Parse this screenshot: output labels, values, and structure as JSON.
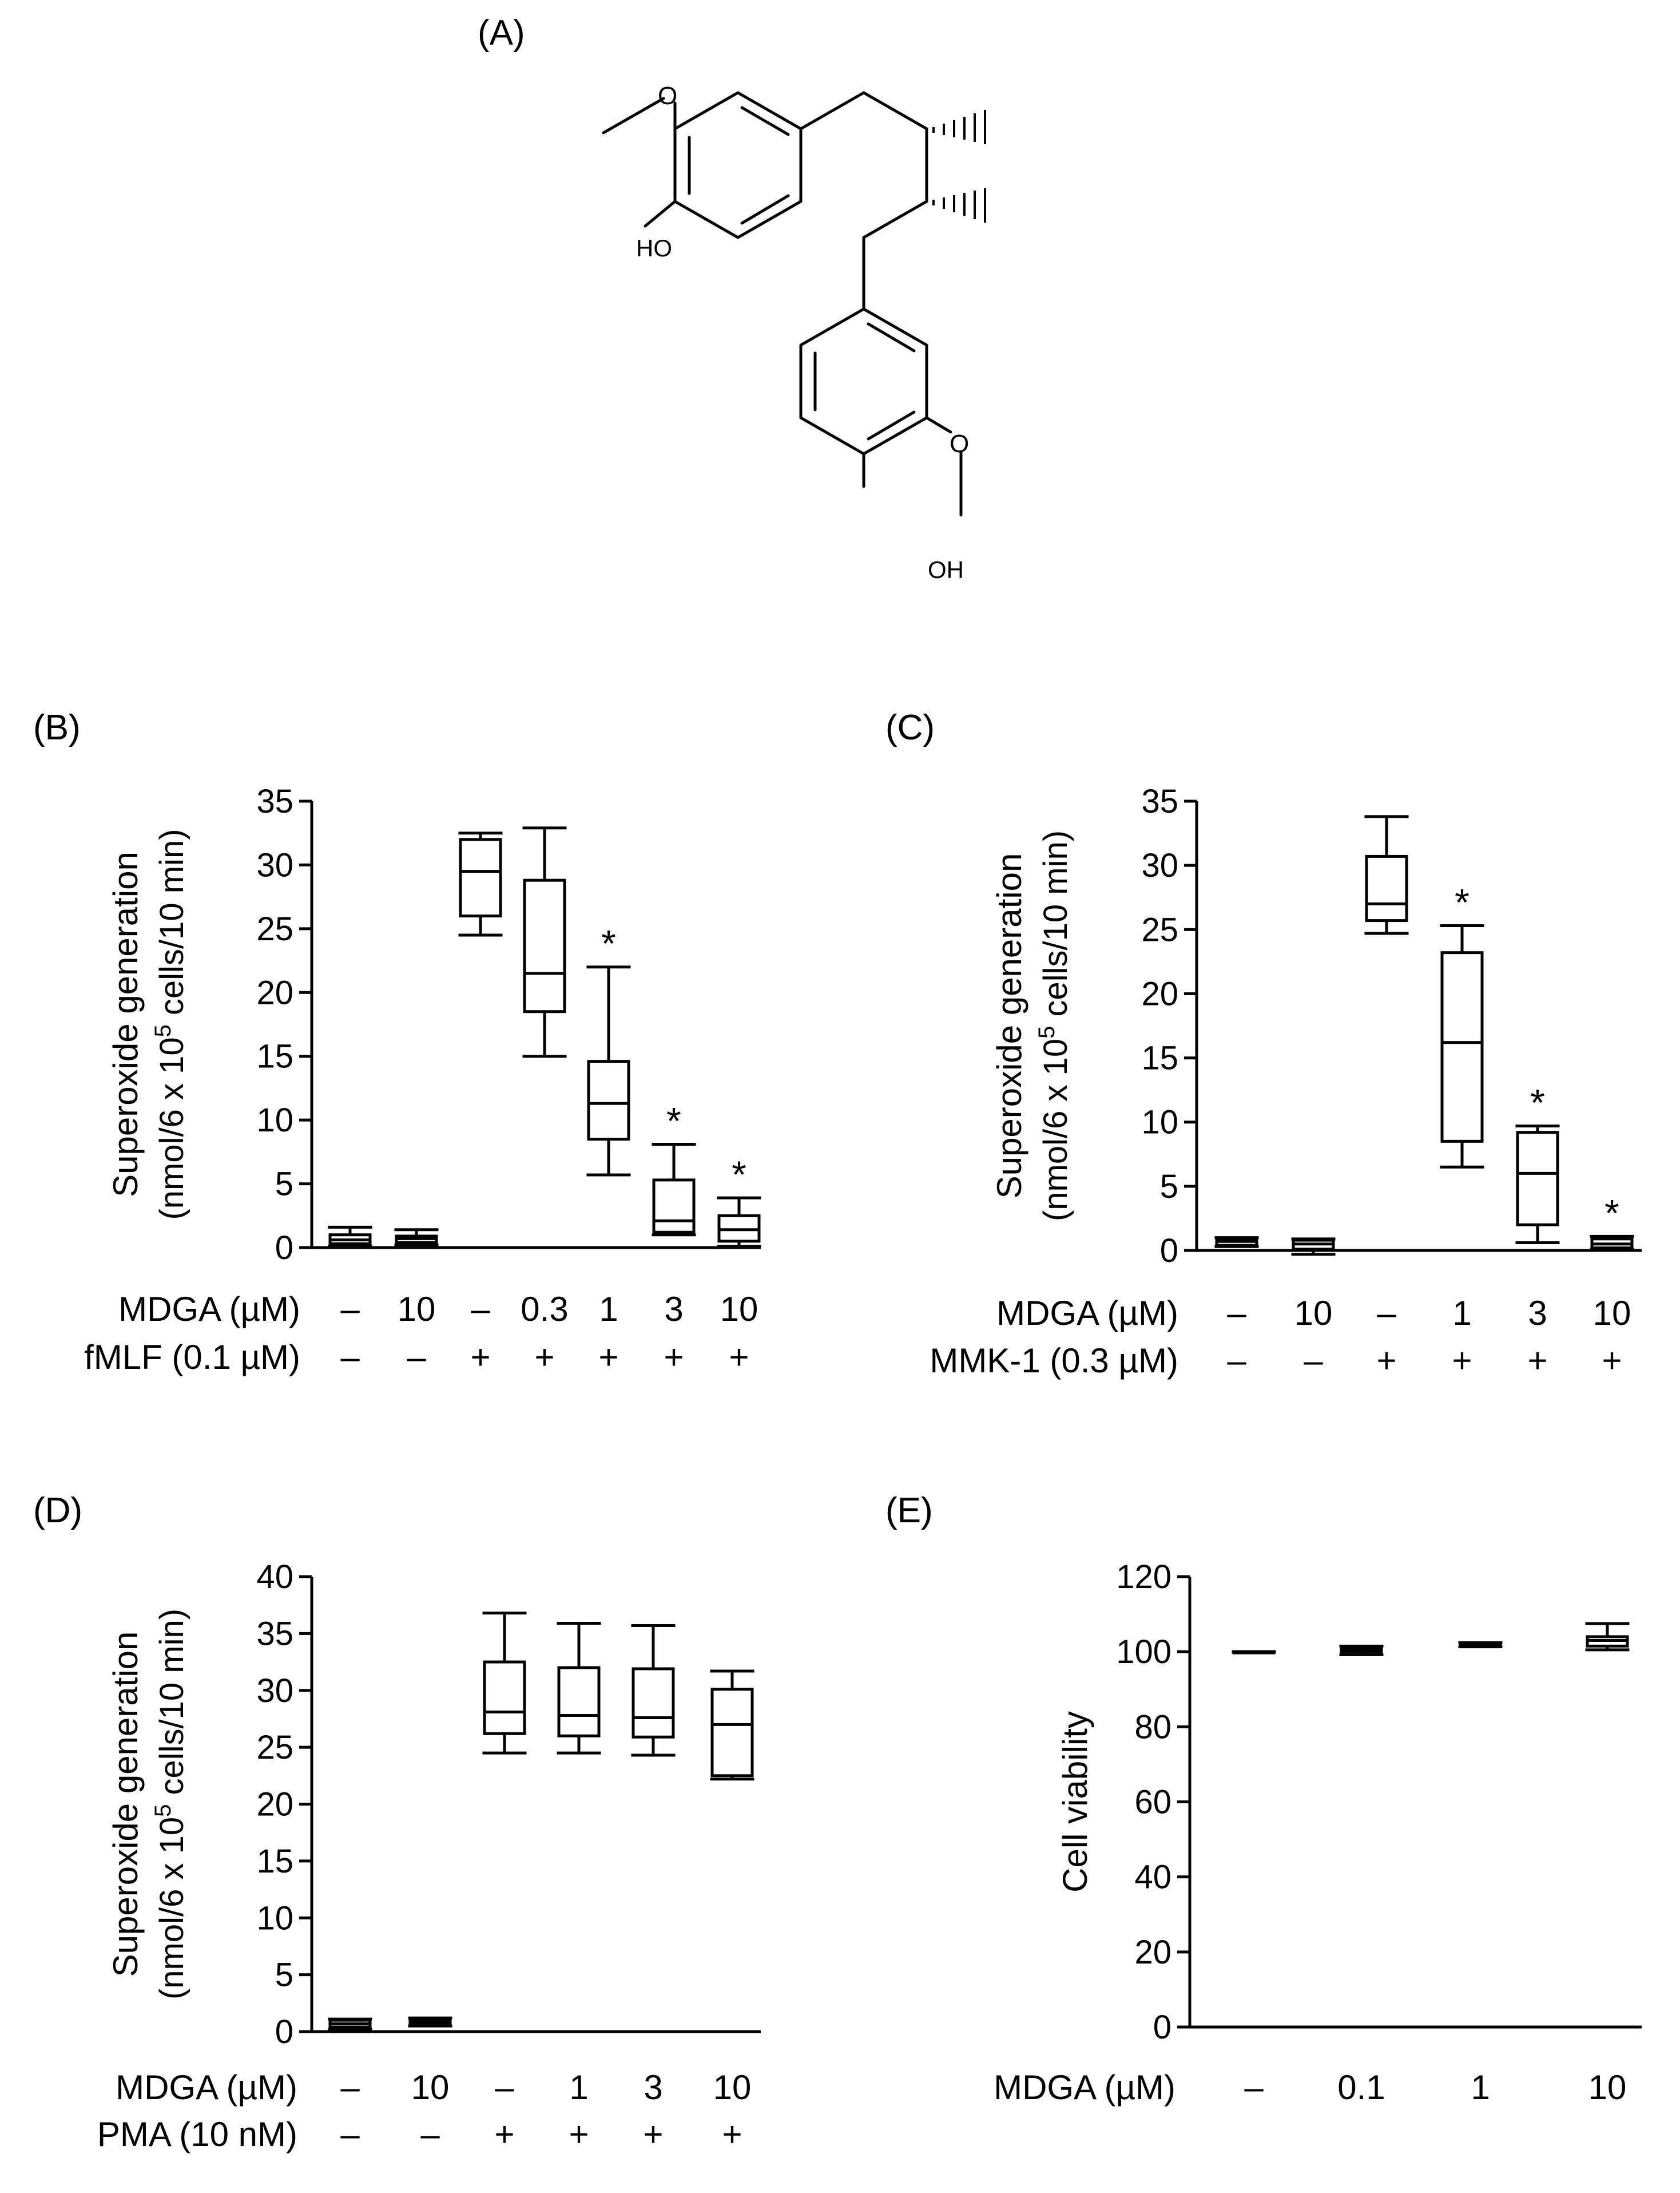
{
  "panel_labels": {
    "A": "(A)",
    "B": "(B)",
    "C": "(C)",
    "D": "(D)",
    "E": "(E)"
  },
  "structure": {
    "atom_labels": [
      "HO",
      "OH"
    ]
  },
  "y_label_superoxide_line1": "Superoxide  generation",
  "y_label_superoxide_line2_prefix": "(nmol/6 x 10",
  "y_label_superoxide_line2_sup": "5",
  "y_label_superoxide_line2_suffix": " cells/10 min)",
  "y_label_viability": "Cell viability",
  "chart_data": [
    {
      "panel": "B",
      "type": "box",
      "ylim": [
        0,
        35
      ],
      "yticks": [
        "0",
        "5",
        "10",
        "15",
        "20",
        "25",
        "30",
        "35"
      ],
      "row_labels": [
        "MDGA (µM)",
        "fMLF (0.1 µM)"
      ],
      "groups": [
        {
          "MDGA": "–",
          "stim": "–",
          "min": 0.1,
          "q1": 0.3,
          "median": 0.6,
          "q3": 1.0,
          "max": 1.6,
          "sig": ""
        },
        {
          "MDGA": "10",
          "stim": "–",
          "min": 0.2,
          "q1": 0.4,
          "median": 0.7,
          "q3": 0.9,
          "max": 1.4,
          "sig": ""
        },
        {
          "MDGA": "–",
          "stim": "+",
          "min": 24.5,
          "q1": 26.0,
          "median": 29.5,
          "q3": 32.0,
          "max": 32.5,
          "sig": ""
        },
        {
          "MDGA": "0.3",
          "stim": "+",
          "min": 15.0,
          "q1": 18.5,
          "median": 21.5,
          "q3": 28.8,
          "max": 32.9,
          "sig": ""
        },
        {
          "MDGA": "1",
          "stim": "+",
          "min": 5.7,
          "q1": 8.5,
          "median": 11.3,
          "q3": 14.6,
          "max": 22.0,
          "sig": "*"
        },
        {
          "MDGA": "3",
          "stim": "+",
          "min": 1.0,
          "q1": 1.2,
          "median": 2.1,
          "q3": 5.3,
          "max": 8.1,
          "sig": "*"
        },
        {
          "MDGA": "10",
          "stim": "+",
          "min": 0.1,
          "q1": 0.5,
          "median": 1.4,
          "q3": 2.5,
          "max": 3.9,
          "sig": "*"
        }
      ]
    },
    {
      "panel": "C",
      "type": "box",
      "ylim": [
        0,
        35
      ],
      "yticks": [
        "0",
        "5",
        "10",
        "15",
        "20",
        "25",
        "30",
        "35"
      ],
      "row_labels": [
        "MDGA (µM)",
        "MMK-1 (0.3 µM)"
      ],
      "groups": [
        {
          "MDGA": "–",
          "stim": "–",
          "min": 0.3,
          "q1": 0.4,
          "median": 0.7,
          "q3": 0.9,
          "max": 1.0,
          "sig": ""
        },
        {
          "MDGA": "10",
          "stim": "–",
          "min": -0.3,
          "q1": 0.1,
          "median": 0.5,
          "q3": 0.8,
          "max": 0.9,
          "sig": ""
        },
        {
          "MDGA": "–",
          "stim": "+",
          "min": 24.7,
          "q1": 25.7,
          "median": 27.0,
          "q3": 30.7,
          "max": 33.8,
          "sig": ""
        },
        {
          "MDGA": "1",
          "stim": "+",
          "min": 6.5,
          "q1": 8.5,
          "median": 16.2,
          "q3": 23.2,
          "max": 25.3,
          "sig": "*"
        },
        {
          "MDGA": "3",
          "stim": "+",
          "min": 0.6,
          "q1": 2.0,
          "median": 6.0,
          "q3": 9.2,
          "max": 9.7,
          "sig": "*"
        },
        {
          "MDGA": "10",
          "stim": "+",
          "min": 0.1,
          "q1": 0.2,
          "median": 0.5,
          "q3": 0.9,
          "max": 1.1,
          "sig": "*"
        }
      ]
    },
    {
      "panel": "D",
      "type": "box",
      "ylim": [
        0,
        40
      ],
      "yticks": [
        "0",
        "5",
        "10",
        "15",
        "20",
        "25",
        "30",
        "35",
        "40"
      ],
      "row_labels": [
        "MDGA (µM)",
        "PMA (10 nM)"
      ],
      "groups": [
        {
          "MDGA": "–",
          "stim": "–",
          "min": 0.2,
          "q1": 0.4,
          "median": 0.7,
          "q3": 1.0,
          "max": 1.1,
          "sig": ""
        },
        {
          "MDGA": "10",
          "stim": "–",
          "min": 0.5,
          "q1": 0.7,
          "median": 0.9,
          "q3": 1.1,
          "max": 1.2,
          "sig": ""
        },
        {
          "MDGA": "–",
          "stim": "+",
          "min": 24.5,
          "q1": 26.2,
          "median": 28.1,
          "q3": 32.5,
          "max": 36.8,
          "sig": ""
        },
        {
          "MDGA": "1",
          "stim": "+",
          "min": 24.5,
          "q1": 26.0,
          "median": 27.8,
          "q3": 32.0,
          "max": 35.9,
          "sig": ""
        },
        {
          "MDGA": "3",
          "stim": "+",
          "min": 24.3,
          "q1": 25.9,
          "median": 27.6,
          "q3": 31.9,
          "max": 35.7,
          "sig": ""
        },
        {
          "MDGA": "10",
          "stim": "+",
          "min": 22.2,
          "q1": 22.5,
          "median": 27.0,
          "q3": 30.1,
          "max": 31.7,
          "sig": ""
        }
      ]
    },
    {
      "panel": "E",
      "type": "box",
      "ylim": [
        0,
        120
      ],
      "yticks": [
        "0",
        "20",
        "40",
        "60",
        "80",
        "100",
        "120"
      ],
      "row_labels": [
        "MDGA (µM)"
      ],
      "groups": [
        {
          "MDGA": "–",
          "min": 100.0,
          "q1": 100.0,
          "median": 100.0,
          "q3": 100.0,
          "max": 100.0,
          "sig": ""
        },
        {
          "MDGA": "0.1",
          "min": 99.2,
          "q1": 100.0,
          "median": 100.5,
          "q3": 101.0,
          "max": 101.5,
          "sig": ""
        },
        {
          "MDGA": "1",
          "min": 101.3,
          "q1": 101.6,
          "median": 102.0,
          "q3": 102.2,
          "max": 102.4,
          "sig": ""
        },
        {
          "MDGA": "10",
          "min": 100.5,
          "q1": 101.5,
          "median": 103.0,
          "q3": 104.0,
          "max": 107.5,
          "sig": ""
        }
      ]
    }
  ]
}
